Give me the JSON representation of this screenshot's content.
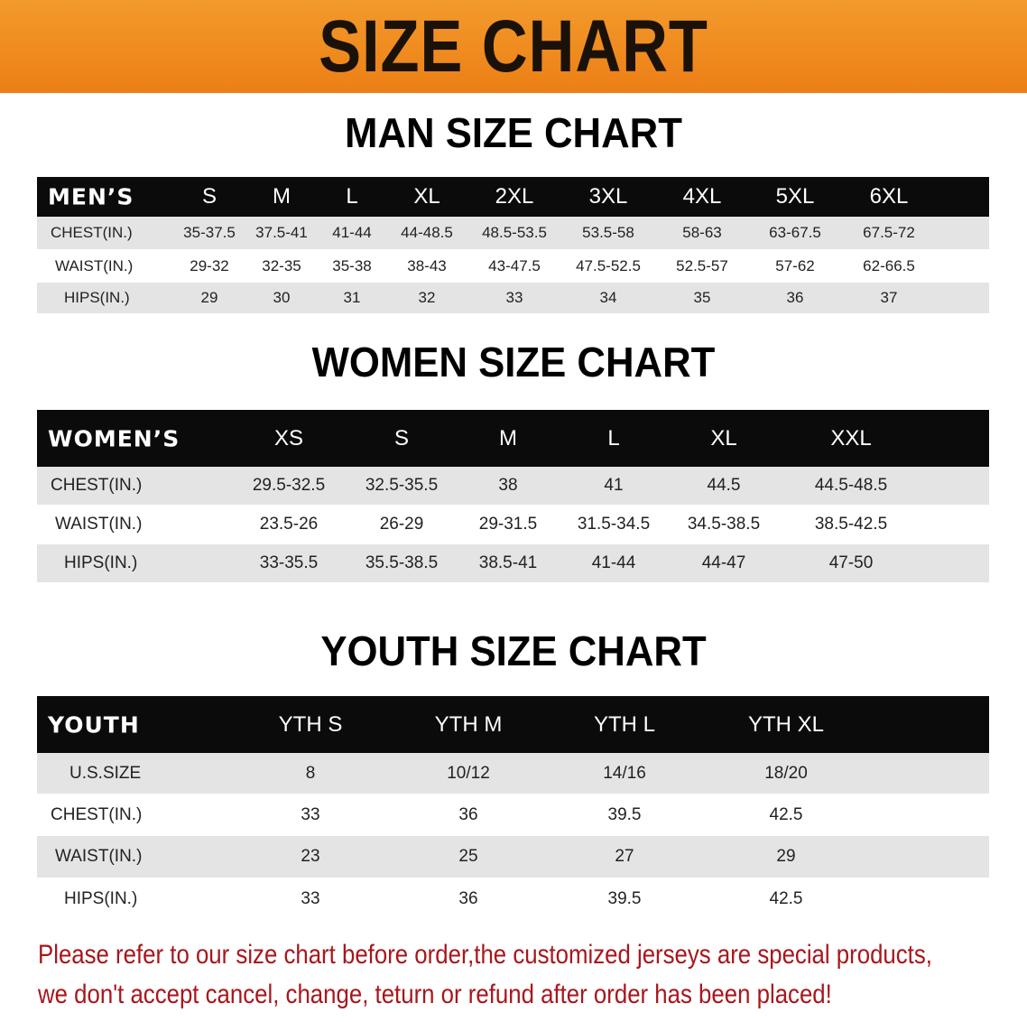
{
  "banner_title": "SIZE CHART",
  "men": {
    "title": "MAN SIZE CHART",
    "header": [
      "MEN’S",
      "S",
      "M",
      "L",
      "XL",
      "2XL",
      "3XL",
      "4XL",
      "5XL",
      "6XL"
    ],
    "rows": [
      [
        "CHEST(IN.)",
        "35-37.5",
        "37.5-41",
        "41-44",
        "44-48.5",
        "48.5-53.5",
        "53.5-58",
        "58-63",
        "63-67.5",
        "67.5-72"
      ],
      [
        "WAIST(IN.)",
        "29-32",
        "32-35",
        "35-38",
        "38-43",
        "43-47.5",
        "47.5-52.5",
        "52.5-57",
        "57-62",
        "62-66.5"
      ],
      [
        "HIPS(IN.)",
        "29",
        "30",
        "31",
        "32",
        "33",
        "34",
        "35",
        "36",
        "37"
      ]
    ]
  },
  "women": {
    "title": "WOMEN SIZE CHART",
    "header": [
      "WOMEN’S",
      "XS",
      "S",
      "M",
      "L",
      "XL",
      "XXL"
    ],
    "rows": [
      [
        "CHEST(IN.)",
        "29.5-32.5",
        "32.5-35.5",
        "38",
        "41",
        "44.5",
        "44.5-48.5"
      ],
      [
        "WAIST(IN.)",
        "23.5-26",
        "26-29",
        "29-31.5",
        "31.5-34.5",
        "34.5-38.5",
        "38.5-42.5"
      ],
      [
        "HIPS(IN.)",
        "33-35.5",
        "35.5-38.5",
        "38.5-41",
        "41-44",
        "44-47",
        "47-50"
      ]
    ]
  },
  "youth": {
    "title": "YOUTH SIZE CHART",
    "header": [
      "YOUTH",
      "YTH S",
      "YTH M",
      "YTH L",
      "YTH XL"
    ],
    "rows": [
      [
        "U.S.SIZE",
        "8",
        "10/12",
        "14/16",
        "18/20"
      ],
      [
        "CHEST(IN.)",
        "33",
        "36",
        "39.5",
        "42.5"
      ],
      [
        "WAIST(IN.)",
        "23",
        "25",
        "27",
        "29"
      ],
      [
        "HIPS(IN.)",
        "33",
        "36",
        "39.5",
        "42.5"
      ]
    ]
  },
  "note": {
    "line1": "Please refer to our size chart before order,the customized jerseys are special products,",
    "line2": "we don't accept cancel, change, teturn or refund after order has been placed!"
  },
  "colors": {
    "banner": "#ec7f15",
    "header_row": "#0b0b0b",
    "note_text": "#a8161c"
  }
}
